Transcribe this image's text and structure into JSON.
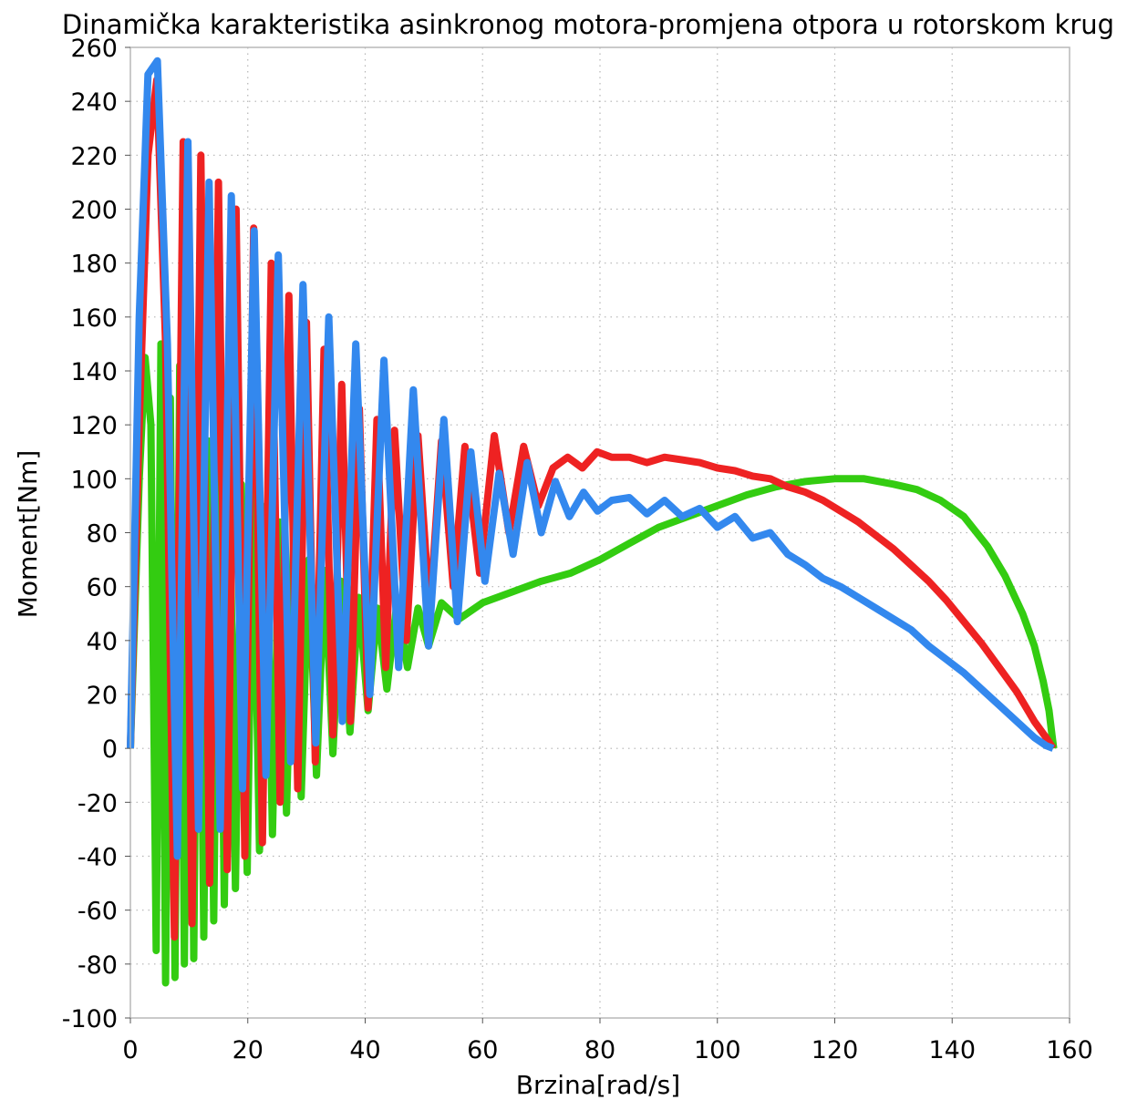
{
  "chart_data": {
    "type": "line",
    "title": "Dinamička karakteristika asinkronog motora-promjena otpora u rotorskom krug",
    "xlabel": "Brzina[rad/s]",
    "ylabel": "Moment[Nm]",
    "xlim": [
      0,
      160
    ],
    "ylim": [
      -100,
      260
    ],
    "x_ticks": [
      "0",
      "20",
      "40",
      "60",
      "80",
      "100",
      "120",
      "140",
      "160"
    ],
    "y_ticks": [
      "-100",
      "-80",
      "-60",
      "-40",
      "-20",
      "0",
      "20",
      "40",
      "60",
      "80",
      "100",
      "120",
      "140",
      "160",
      "180",
      "200",
      "220",
      "240",
      "260"
    ],
    "grid": true,
    "legend": "none",
    "series": [
      {
        "color": "#33cc11",
        "x": [
          0,
          1.5,
          2.5,
          3.5,
          4.4,
          5.2,
          6.0,
          6.8,
          7.6,
          8.4,
          9.2,
          10.0,
          10.8,
          11.6,
          12.5,
          13.3,
          14.2,
          15.1,
          16.0,
          16.9,
          17.9,
          18.9,
          19.9,
          20.9,
          22.0,
          23.1,
          24.2,
          25.4,
          26.6,
          27.8,
          29.1,
          30.4,
          31.7,
          33.1,
          34.5,
          35.9,
          37.4,
          38.9,
          40.5,
          42.1,
          43.7,
          45.4,
          47.2,
          49.0,
          50.8,
          53,
          56,
          60,
          65,
          70,
          75,
          80,
          85,
          90,
          95,
          100,
          105,
          110,
          115,
          120,
          125,
          130,
          134,
          138,
          142,
          146,
          149,
          152,
          154,
          155.5,
          156.5,
          157.0,
          157.3
        ],
        "y": [
          0,
          100,
          145,
          120,
          -75,
          150,
          -87,
          130,
          -85,
          142,
          -80,
          140,
          -78,
          120,
          -70,
          114,
          -64,
          110,
          -58,
          102,
          -52,
          98,
          -46,
          96,
          -38,
          90,
          -32,
          84,
          -24,
          78,
          -18,
          70,
          -10,
          66,
          -2,
          62,
          6,
          56,
          14,
          52,
          22,
          54,
          30,
          52,
          38,
          54,
          48,
          54,
          58,
          62,
          65,
          70,
          76,
          82,
          86,
          90,
          94,
          97,
          99,
          100,
          100,
          98,
          96,
          92,
          86,
          75,
          64,
          50,
          38,
          25,
          14,
          5,
          0
        ]
      },
      {
        "color": "#ee2222",
        "x": [
          0,
          1.5,
          3.0,
          4.5,
          6.0,
          7.5,
          9.0,
          10.5,
          12.0,
          13.5,
          15.0,
          16.5,
          18.0,
          19.5,
          21.0,
          22.5,
          24.0,
          25.5,
          27.0,
          28.5,
          30.0,
          31.5,
          33.0,
          34.5,
          36.0,
          37.5,
          39.0,
          40.5,
          42.0,
          43.5,
          45.0,
          47.0,
          49.0,
          51.0,
          53.0,
          55.0,
          57.0,
          59.5,
          62.0,
          64.5,
          67.0,
          69.5,
          72.0,
          74.5,
          77.0,
          79.5,
          82,
          85,
          88,
          91,
          94,
          97,
          100,
          103,
          106,
          109,
          112,
          115,
          118,
          121,
          124,
          127,
          130,
          133,
          136,
          139,
          142,
          145,
          148,
          151,
          154,
          156,
          157.2
        ],
        "y": [
          0,
          120,
          220,
          248,
          150,
          -70,
          225,
          -65,
          220,
          -50,
          210,
          -45,
          200,
          -40,
          193,
          -35,
          180,
          -20,
          168,
          -15,
          158,
          -5,
          148,
          5,
          135,
          10,
          126,
          15,
          122,
          30,
          118,
          40,
          116,
          50,
          114,
          60,
          112,
          65,
          116,
          80,
          112,
          90,
          104,
          108,
          104,
          110,
          108,
          108,
          106,
          108,
          107,
          106,
          104,
          103,
          101,
          100,
          97,
          95,
          92,
          88,
          84,
          79,
          74,
          68,
          62,
          55,
          47,
          39,
          30,
          21,
          10,
          4,
          0
        ]
      },
      {
        "color": "#3388ee",
        "x": [
          0,
          1.5,
          3.0,
          4.6,
          6.3,
          8.0,
          9.8,
          11.6,
          13.4,
          15.3,
          17.2,
          19.1,
          21.1,
          23.1,
          25.2,
          27.3,
          29.4,
          31.6,
          33.8,
          36.1,
          38.4,
          40.8,
          43.2,
          45.7,
          48.2,
          50.8,
          53.4,
          55.7,
          58.0,
          60.4,
          62.8,
          65.2,
          67.6,
          70.0,
          72.4,
          74.8,
          77.2,
          79.6,
          82,
          85,
          88,
          91,
          94,
          97,
          100,
          103,
          106,
          109,
          112,
          115,
          118,
          121,
          124,
          127,
          130,
          133,
          136,
          139,
          142,
          145,
          148,
          151,
          154,
          156,
          157.2
        ],
        "y": [
          0,
          160,
          250,
          255,
          150,
          -40,
          225,
          -30,
          210,
          -30,
          205,
          -15,
          192,
          -10,
          183,
          -5,
          172,
          2,
          160,
          10,
          150,
          20,
          144,
          30,
          133,
          38,
          122,
          47,
          110,
          62,
          102,
          72,
          106,
          80,
          99,
          86,
          95,
          88,
          92,
          93,
          87,
          92,
          86,
          89,
          82,
          86,
          78,
          80,
          72,
          68,
          63,
          60,
          56,
          52,
          48,
          44,
          38,
          33,
          28,
          22,
          16,
          10,
          4,
          1,
          0
        ]
      }
    ]
  }
}
